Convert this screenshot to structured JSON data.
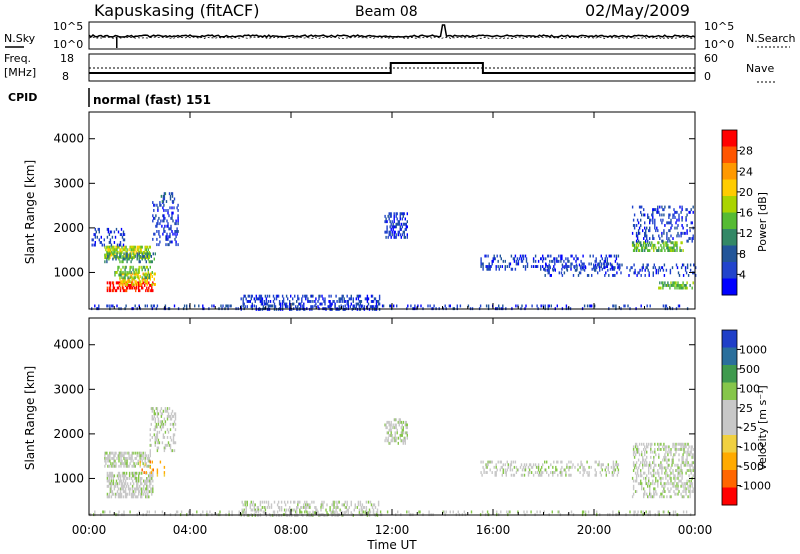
{
  "header": {
    "station": "Kapuskasing (fitACF)",
    "beam": "Beam 08",
    "date": "02/May/2009"
  },
  "noise_panel": {
    "left_label": "N.Sky",
    "right_label": "N.Search",
    "left_ticks": [
      "10^5",
      "10^0"
    ],
    "right_ticks": [
      "10^5",
      "10^0"
    ]
  },
  "freq_panel": {
    "left_label_1": "Freq.",
    "left_label_2": "[MHz]",
    "right_label": "Nave",
    "left_ticks": [
      "18",
      "8"
    ],
    "right_ticks": [
      "60",
      "0"
    ]
  },
  "cpid": {
    "label": "CPID",
    "value": "normal (fast) 151"
  },
  "time_axis": {
    "label": "Time UT",
    "ticks": [
      "00:00",
      "04:00",
      "08:00",
      "12:00",
      "16:00",
      "20:00",
      "00:00"
    ]
  },
  "power_colorbar": {
    "label": "Power [dB]",
    "ticks": [
      "28",
      "24",
      "20",
      "16",
      "12",
      "8",
      "4"
    ],
    "colors": [
      "#ff0000",
      "#ff5500",
      "#ff9900",
      "#ffcc00",
      "#aad400",
      "#55bb33",
      "#338866",
      "#225599",
      "#2244cc",
      "#0000ff"
    ]
  },
  "velocity_colorbar": {
    "label": "Velocity [m s⁻¹]",
    "ticks": [
      "1000",
      "500",
      "100",
      "25",
      "-25",
      "-100",
      "-500",
      "-1000"
    ],
    "colors": [
      "#1f3fc8",
      "#2a6f9c",
      "#3f9a4e",
      "#86c64a",
      "#c8c8c8",
      "#c8c8c8",
      "#f0d040",
      "#ffaa00",
      "#ff6600",
      "#ff0000"
    ]
  },
  "chart_data": [
    {
      "type": "scatter",
      "name": "power",
      "ylabel": "Slant Range [km]",
      "xlabel": "Time UT",
      "x_range": [
        0,
        24
      ],
      "ylim": [
        180,
        4600
      ],
      "y_ticks": [
        "1000",
        "2000",
        "3000",
        "4000"
      ],
      "regions": [
        {
          "x": [
            0.6,
            2.4
          ],
          "y": [
            1350,
            1600
          ],
          "level": 4,
          "density": 0.6
        },
        {
          "x": [
            0.6,
            2.6
          ],
          "y": [
            1250,
            1450
          ],
          "level": 6,
          "density": 0.4
        },
        {
          "x": [
            0.7,
            2.5
          ],
          "y": [
            600,
            800
          ],
          "level": 0,
          "density": 0.55
        },
        {
          "x": [
            1.2,
            2.6
          ],
          "y": [
            750,
            1000
          ],
          "level": 3,
          "density": 0.5
        },
        {
          "x": [
            1.0,
            2.5
          ],
          "y": [
            900,
            1150
          ],
          "level": 5,
          "density": 0.35
        },
        {
          "x": [
            0.1,
            1.5
          ],
          "y": [
            1600,
            2000
          ],
          "level": 8,
          "density": 0.25
        },
        {
          "x": [
            2.5,
            3.5
          ],
          "y": [
            1600,
            2600
          ],
          "level": 8,
          "density": 0.25
        },
        {
          "x": [
            2.8,
            3.4
          ],
          "y": [
            2600,
            2800
          ],
          "level": 7,
          "density": 0.3
        },
        {
          "x": [
            6.0,
            11.5
          ],
          "y": [
            200,
            500
          ],
          "level": 8,
          "density": 0.35
        },
        {
          "x": [
            11.7,
            12.6
          ],
          "y": [
            1800,
            2350
          ],
          "level": 8,
          "density": 0.45
        },
        {
          "x": [
            15.5,
            21.0
          ],
          "y": [
            1100,
            1400
          ],
          "level": 8,
          "density": 0.28
        },
        {
          "x": [
            18.0,
            24.0
          ],
          "y": [
            950,
            1200
          ],
          "level": 8,
          "density": 0.18
        },
        {
          "x": [
            21.5,
            23.5
          ],
          "y": [
            1500,
            1700
          ],
          "level": 5,
          "density": 0.55
        },
        {
          "x": [
            21.5,
            23.9
          ],
          "y": [
            1700,
            2500
          ],
          "level": 8,
          "density": 0.2
        },
        {
          "x": [
            22.5,
            23.9
          ],
          "y": [
            650,
            800
          ],
          "level": 5,
          "density": 0.5
        },
        {
          "x": [
            0.0,
            24.0
          ],
          "y": [
            180,
            280
          ],
          "level": 8,
          "density": 0.2
        }
      ]
    },
    {
      "type": "scatter",
      "name": "velocity",
      "ylabel": "Slant Range [km]",
      "xlabel": "Time UT",
      "x_range": [
        0,
        24
      ],
      "ylim": [
        180,
        4600
      ],
      "y_ticks": [
        "1000",
        "2000",
        "3000",
        "4000"
      ],
      "regions": [
        {
          "x": [
            0.6,
            2.4
          ],
          "y": [
            1250,
            1600
          ],
          "level": 4,
          "density": 0.55
        },
        {
          "x": [
            0.7,
            2.5
          ],
          "y": [
            600,
            1150
          ],
          "level": 4,
          "density": 0.5
        },
        {
          "x": [
            2.4,
            3.4
          ],
          "y": [
            1600,
            2600
          ],
          "level": 4,
          "density": 0.3
        },
        {
          "x": [
            2.0,
            3.0
          ],
          "y": [
            1100,
            1400
          ],
          "level": 7,
          "density": 0.1
        },
        {
          "x": [
            6.0,
            11.5
          ],
          "y": [
            200,
            500
          ],
          "level": 4,
          "density": 0.3
        },
        {
          "x": [
            11.7,
            12.6
          ],
          "y": [
            1800,
            2350
          ],
          "level": 4,
          "density": 0.4
        },
        {
          "x": [
            15.5,
            21.0
          ],
          "y": [
            1100,
            1400
          ],
          "level": 4,
          "density": 0.25
        },
        {
          "x": [
            21.5,
            23.9
          ],
          "y": [
            600,
            1800
          ],
          "level": 4,
          "density": 0.35
        },
        {
          "x": [
            0.0,
            24.0
          ],
          "y": [
            180,
            280
          ],
          "level": 4,
          "density": 0.18
        }
      ]
    }
  ]
}
